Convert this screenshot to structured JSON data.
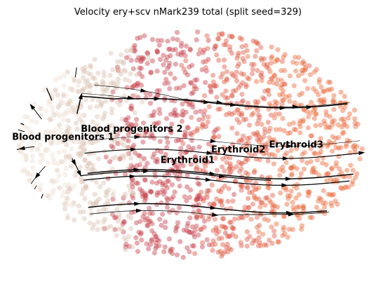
{
  "chart_data": {
    "type": "scatter",
    "title": "Velocity ery+scv nMark239 total (split seed=329)",
    "xlabel": "",
    "ylabel": "",
    "grid": false,
    "axes_visible": false,
    "legend": "on data",
    "overlay": "velocity streamlines with arrowheads",
    "xlim": [
      0,
      100
    ],
    "ylim": [
      0,
      100
    ],
    "clusters": [
      {
        "name": "Blood progenitors 1",
        "color": "#efe0d4",
        "center": [
          6,
          52
        ]
      },
      {
        "name": "Blood progenitors 2",
        "color": "#dcc3b4",
        "center": [
          24,
          62
        ]
      },
      {
        "name": "Erythroid1",
        "color": "#c8454e",
        "center": [
          42,
          42
        ]
      },
      {
        "name": "Erythroid2",
        "color": "#e05a45",
        "center": [
          64,
          50
        ]
      },
      {
        "name": "Erythroid3",
        "color": "#ea6a3c",
        "center": [
          84,
          56
        ]
      }
    ],
    "labels": [
      {
        "text": "Blood progenitors 1",
        "x": 1,
        "y": 54
      },
      {
        "text": "Blood progenitors 2",
        "x": 20,
        "y": 57
      },
      {
        "text": "Erythroid1",
        "x": 42,
        "y": 45
      },
      {
        "text": "Erythroid2",
        "x": 56,
        "y": 49
      },
      {
        "text": "Erythroid3",
        "x": 72,
        "y": 51
      }
    ]
  }
}
